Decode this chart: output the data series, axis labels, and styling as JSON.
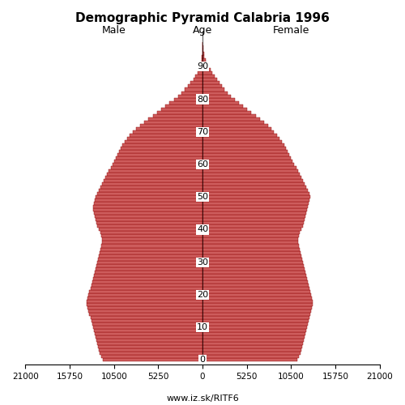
{
  "title": "Demographic Pyramid Calabria 1996",
  "xlabel_left": "Male",
  "xlabel_right": "Female",
  "age_label": "Age",
  "watermark": "www.iz.sk/RITF6",
  "xlim": 21000,
  "bar_color": "#cd5c5c",
  "bar_edge_color": "#8b0000",
  "background_color": "#ffffff",
  "male": [
    11800,
    12000,
    12200,
    12300,
    12400,
    12500,
    12600,
    12700,
    12800,
    12900,
    13000,
    13100,
    13200,
    13300,
    13400,
    13500,
    13600,
    13700,
    13700,
    13600,
    13500,
    13400,
    13300,
    13200,
    13100,
    13000,
    12900,
    12800,
    12700,
    12600,
    12500,
    12400,
    12300,
    12200,
    12100,
    12000,
    11900,
    11900,
    12000,
    12100,
    12300,
    12500,
    12600,
    12700,
    12800,
    12900,
    13000,
    13000,
    12900,
    12800,
    12700,
    12500,
    12300,
    12100,
    11900,
    11700,
    11500,
    11300,
    11100,
    10900,
    10700,
    10500,
    10300,
    10100,
    9900,
    9700,
    9500,
    9200,
    8900,
    8600,
    8300,
    7900,
    7400,
    6900,
    6400,
    5900,
    5400,
    4900,
    4400,
    3900,
    3400,
    2900,
    2500,
    2100,
    1700,
    1400,
    1100,
    850,
    620,
    440,
    300,
    190,
    120,
    70,
    40,
    20,
    10,
    5
  ],
  "female": [
    11200,
    11400,
    11600,
    11700,
    11800,
    11900,
    12000,
    12100,
    12200,
    12300,
    12400,
    12500,
    12600,
    12700,
    12800,
    12900,
    13000,
    13100,
    13100,
    13000,
    12900,
    12800,
    12700,
    12600,
    12500,
    12400,
    12300,
    12200,
    12100,
    12000,
    11900,
    11800,
    11700,
    11600,
    11500,
    11400,
    11300,
    11300,
    11400,
    11500,
    11700,
    11900,
    12000,
    12100,
    12200,
    12300,
    12400,
    12500,
    12600,
    12700,
    12800,
    12700,
    12500,
    12300,
    12100,
    11900,
    11700,
    11500,
    11300,
    11100,
    10900,
    10700,
    10500,
    10300,
    10100,
    9900,
    9700,
    9400,
    9100,
    8800,
    8500,
    8200,
    7800,
    7300,
    6800,
    6300,
    5800,
    5300,
    4800,
    4300,
    3800,
    3400,
    3000,
    2600,
    2300,
    2000,
    1700,
    1450,
    1200,
    950,
    720,
    520,
    360,
    240,
    150,
    90,
    50,
    25
  ]
}
